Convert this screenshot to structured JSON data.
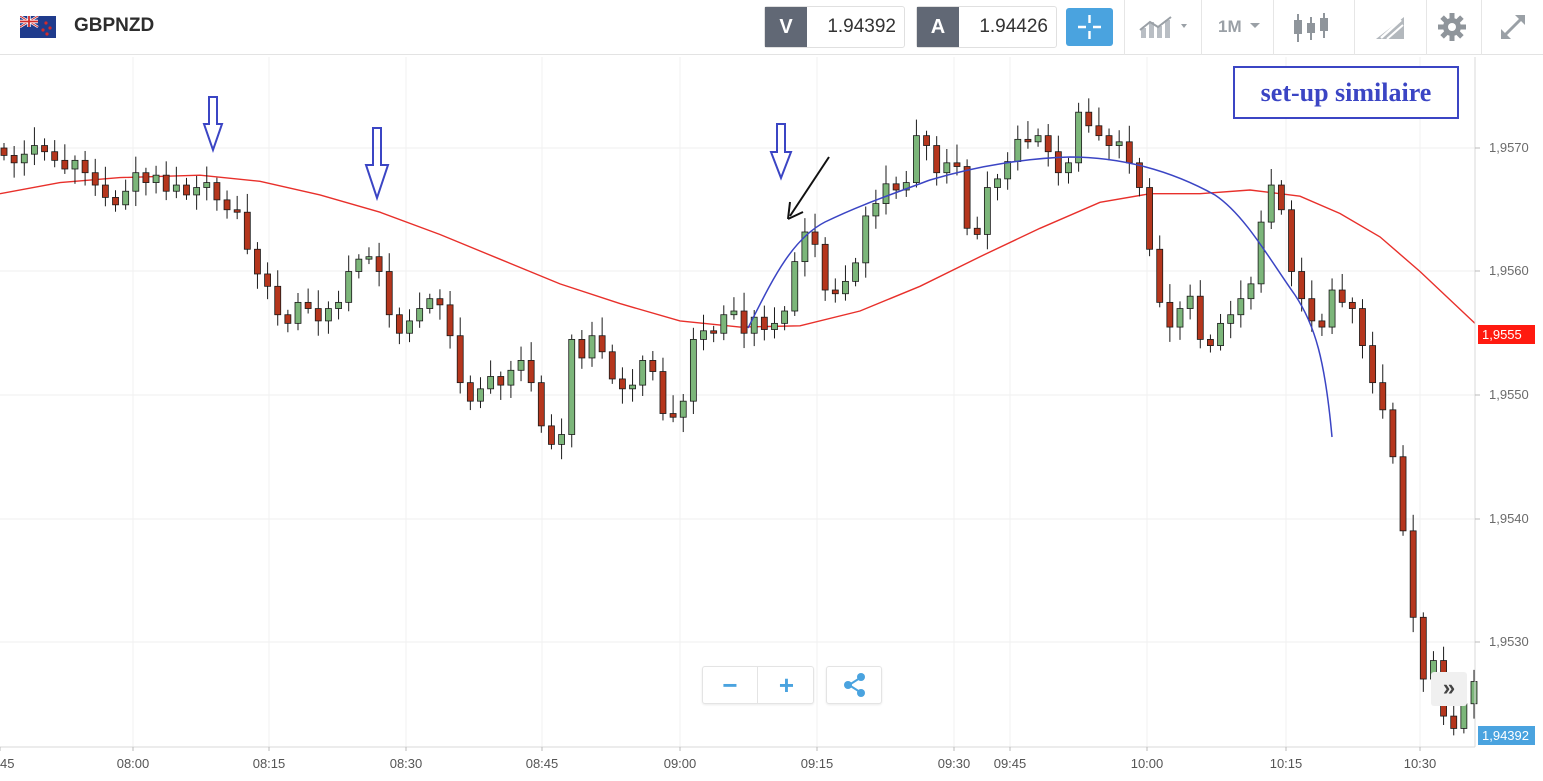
{
  "header": {
    "symbol": "GBPNZD",
    "bid_letter": "V",
    "bid_value": "1.94392",
    "ask_letter": "A",
    "ask_value": "1.94426",
    "timeframe": "1M",
    "icons": [
      "uk-nz-flag-icon",
      "crosshair-icon",
      "chart-type-icon",
      "candlestick-icon",
      "drawing-tools-icon",
      "gear-icon",
      "expand-icon"
    ]
  },
  "annotation": {
    "label": "set-up similaire"
  },
  "price_tags": {
    "ma_value": "1,9555",
    "current": "1,94392"
  },
  "controls": {
    "zoom_out": "−",
    "zoom_in": "+",
    "scroll": "»"
  },
  "colors": {
    "bull": "#7cb67a",
    "bear": "#b5361d",
    "ma_red": "#e8302b",
    "curve_blue": "#3b45c4",
    "accent": "#4aa3df"
  },
  "chart_data": {
    "type": "candlestick",
    "y_axis_ticks": [
      "1,9570",
      "1,9560",
      "1,9550",
      "1,9540",
      "1,9530"
    ],
    "x_axis_ticks": [
      "45",
      "08:00",
      "08:15",
      "08:30",
      "08:45",
      "09:00",
      "09:15",
      "09:30",
      "09:45",
      "10:00",
      "10:15",
      "10:30"
    ],
    "ylim": [
      1.95218,
      1.95758
    ]
  }
}
